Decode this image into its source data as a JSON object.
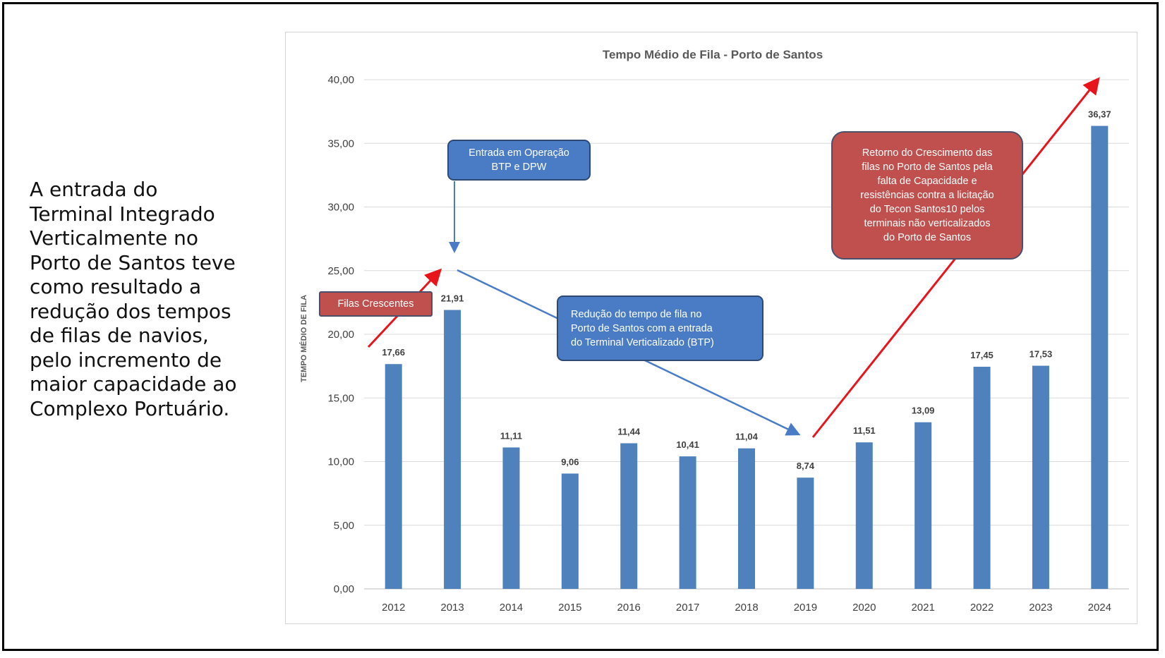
{
  "left_text": {
    "lines": [
      "A entrada do",
      "Terminal Integrado",
      "Verticalmente no",
      "Porto de Santos teve",
      "como resultado a",
      "redução dos tempos",
      "de filas de navios,",
      "pelo incremento de",
      "maior capacidade ao",
      "Complexo Portuário."
    ]
  },
  "chart_data": {
    "type": "bar",
    "title": "Tempo Médio de Fila - Porto de Santos",
    "xlabel": "",
    "ylabel": "TEMPO MÉDIO DE FILA",
    "categories": [
      "2012",
      "2013",
      "2014",
      "2015",
      "2016",
      "2017",
      "2018",
      "2019",
      "2020",
      "2021",
      "2022",
      "2023",
      "2024"
    ],
    "values": [
      17.66,
      21.91,
      11.11,
      9.06,
      11.44,
      10.41,
      11.04,
      8.74,
      11.51,
      13.09,
      17.45,
      17.53,
      36.37
    ],
    "value_labels": [
      "17,66",
      "21,91",
      "11,11",
      "9,06",
      "11,44",
      "10,41",
      "11,04",
      "8,74",
      "11,51",
      "13,09",
      "17,45",
      "17,53",
      "36,37"
    ],
    "ylim": [
      0,
      40
    ],
    "yticks": [
      "0,00",
      "5,00",
      "10,00",
      "15,00",
      "20,00",
      "25,00",
      "30,00",
      "35,00",
      "40,00"
    ],
    "grid": true,
    "legend": "none",
    "bar_color": "#4f81bd"
  },
  "annotations": {
    "entrada": {
      "lines": [
        "Entrada em Operação",
        "BTP e DPW"
      ],
      "color": "#4a7cc6"
    },
    "reducao": {
      "lines": [
        "Redução do tempo de fila no",
        "Porto de Santos com a entrada",
        "do Terminal Verticalizado (BTP)"
      ],
      "color": "#4a7cc6"
    },
    "filas": {
      "lines": [
        "Filas Crescentes"
      ],
      "color": "#c0504d"
    },
    "retorno": {
      "lines": [
        "Retorno do Crescimento das",
        "filas no Porto de Santos pela",
        "falta de Capacidade e",
        "resistências contra a licitação",
        "do Tecon Santos10 pelos",
        "terminais não verticalizados",
        "do Porto de Santos"
      ],
      "color": "#c0504d"
    }
  },
  "colors": {
    "arrow_red": "#e8141b",
    "arrow_blue": "#4a7cc6",
    "grid": "#d9d9d9",
    "text": "#404040"
  }
}
